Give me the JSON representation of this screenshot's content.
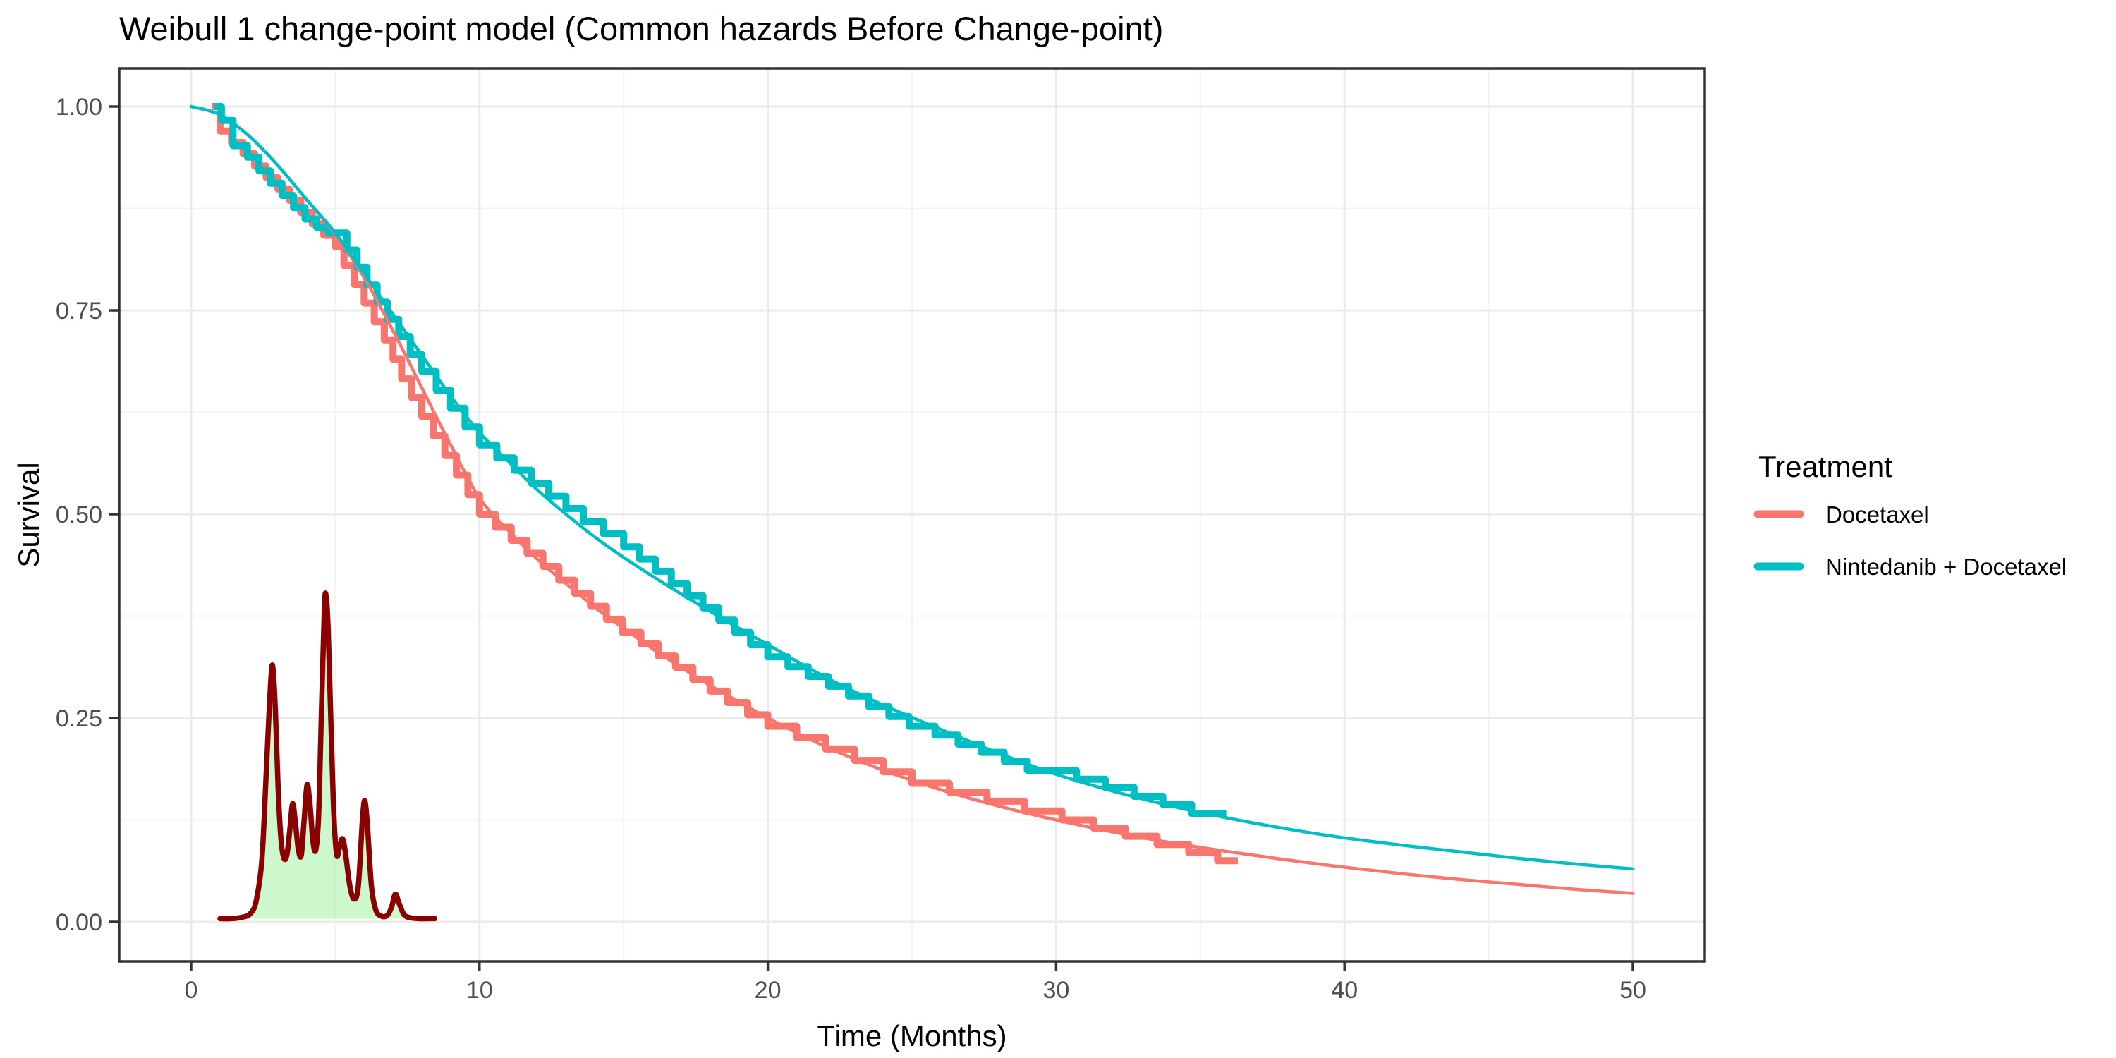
{
  "title": "Weibull 1 change-point model (Common hazards Before Change-point)",
  "chart_data": {
    "type": "line",
    "title": "Weibull 1 change-point model (Common hazards Before Change-point)",
    "xlabel": "Time (Months)",
    "ylabel": "Survival",
    "xlim": [
      0,
      50
    ],
    "ylim": [
      0,
      1
    ],
    "grid": "on",
    "legend_position": "right",
    "x_tick_values": [
      0,
      10,
      20,
      30,
      40,
      50
    ],
    "x_tick_labels": [
      "0",
      "10",
      "20",
      "30",
      "40",
      "50"
    ],
    "x_minor_ticks": [
      5,
      15,
      25,
      35,
      45
    ],
    "y_tick_values": [
      0,
      0.25,
      0.5,
      0.75,
      1
    ],
    "y_tick_labels": [
      "0.00",
      "0.25",
      "0.50",
      "0.75",
      "1.00"
    ],
    "y_minor_ticks": [
      0.125,
      0.375,
      0.625,
      0.875
    ],
    "colors": {
      "docetaxel": "#F8766D",
      "nintedanib_docetaxel": "#00BFC4",
      "density_stroke": "#8B0000",
      "density_fill": "#90EE90",
      "grid_major": "#EBEBEB",
      "grid_minor": "#F3F3F3",
      "panel_border": "#333333",
      "tick_mark": "#333333",
      "tick_text": "#4D4D4D"
    },
    "legend": {
      "title": "Treatment",
      "entries": [
        {
          "label": "Docetaxel",
          "color": "#F8766D"
        },
        {
          "label": "Nintedanib + Docetaxel",
          "color": "#00BFC4"
        }
      ]
    },
    "series": [
      {
        "name": "Docetaxel Kaplan-Meier (step)",
        "type": "step",
        "color": "#F8766D",
        "start_time": 0.72,
        "end_time": 36.3,
        "drops": [
          [
            1.0,
            0.97
          ],
          [
            1.4,
            0.956
          ],
          [
            1.8,
            0.942
          ],
          [
            2.2,
            0.927
          ],
          [
            2.6,
            0.913
          ],
          [
            3.0,
            0.899
          ],
          [
            3.4,
            0.885
          ],
          [
            3.8,
            0.87
          ],
          [
            4.2,
            0.856
          ],
          [
            4.6,
            0.842
          ],
          [
            5.0,
            0.828
          ],
          [
            5.3,
            0.805
          ],
          [
            5.65,
            0.782
          ],
          [
            6.0,
            0.759
          ],
          [
            6.35,
            0.736
          ],
          [
            6.7,
            0.713
          ],
          [
            7.0,
            0.69
          ],
          [
            7.3,
            0.666
          ],
          [
            7.65,
            0.643
          ],
          [
            8.0,
            0.62
          ],
          [
            8.4,
            0.596
          ],
          [
            8.8,
            0.572
          ],
          [
            9.2,
            0.548
          ],
          [
            9.6,
            0.524
          ],
          [
            10.0,
            0.5
          ],
          [
            10.55,
            0.484
          ],
          [
            11.1,
            0.468
          ],
          [
            11.65,
            0.452
          ],
          [
            12.2,
            0.436
          ],
          [
            12.75,
            0.419
          ],
          [
            13.3,
            0.403
          ],
          [
            13.85,
            0.387
          ],
          [
            14.4,
            0.371
          ],
          [
            14.95,
            0.355
          ],
          [
            15.6,
            0.341
          ],
          [
            16.2,
            0.326
          ],
          [
            16.8,
            0.312
          ],
          [
            17.4,
            0.297
          ],
          [
            18.0,
            0.283
          ],
          [
            18.6,
            0.269
          ],
          [
            19.3,
            0.254
          ],
          [
            20.0,
            0.24
          ],
          [
            21.0,
            0.226
          ],
          [
            22.0,
            0.212
          ],
          [
            23.0,
            0.198
          ],
          [
            24.0,
            0.184
          ],
          [
            25.0,
            0.17
          ],
          [
            26.3,
            0.159
          ],
          [
            27.6,
            0.148
          ],
          [
            28.9,
            0.136
          ],
          [
            30.2,
            0.125
          ],
          [
            31.3,
            0.115
          ],
          [
            32.4,
            0.105
          ],
          [
            33.5,
            0.095
          ],
          [
            34.6,
            0.085
          ],
          [
            35.6,
            0.075
          ]
        ]
      },
      {
        "name": "Nintedanib + Docetaxel Kaplan-Meier (step)",
        "type": "step",
        "color": "#00BFC4",
        "start_time": 0.8,
        "end_time": 35.9,
        "drops": [
          [
            1.05,
            0.983
          ],
          [
            1.45,
            0.952
          ],
          [
            1.95,
            0.938
          ],
          [
            2.35,
            0.921
          ],
          [
            2.75,
            0.906
          ],
          [
            3.15,
            0.891
          ],
          [
            3.55,
            0.876
          ],
          [
            3.95,
            0.862
          ],
          [
            4.35,
            0.852
          ],
          [
            4.75,
            0.845
          ],
          [
            5.4,
            0.824
          ],
          [
            5.75,
            0.803
          ],
          [
            6.1,
            0.781
          ],
          [
            6.45,
            0.76
          ],
          [
            6.8,
            0.739
          ],
          [
            7.2,
            0.718
          ],
          [
            7.6,
            0.696
          ],
          [
            8.0,
            0.675
          ],
          [
            8.5,
            0.652
          ],
          [
            9.0,
            0.63
          ],
          [
            9.5,
            0.607
          ],
          [
            10.0,
            0.585
          ],
          [
            10.6,
            0.569
          ],
          [
            11.2,
            0.554
          ],
          [
            11.8,
            0.538
          ],
          [
            12.4,
            0.522
          ],
          [
            13.0,
            0.507
          ],
          [
            13.6,
            0.491
          ],
          [
            14.3,
            0.476
          ],
          [
            15.0,
            0.46
          ],
          [
            15.55,
            0.445
          ],
          [
            16.1,
            0.43
          ],
          [
            16.65,
            0.415
          ],
          [
            17.2,
            0.4
          ],
          [
            17.75,
            0.385
          ],
          [
            18.3,
            0.37
          ],
          [
            18.85,
            0.355
          ],
          [
            19.4,
            0.34
          ],
          [
            20.0,
            0.325
          ],
          [
            20.7,
            0.313
          ],
          [
            21.4,
            0.301
          ],
          [
            22.1,
            0.289
          ],
          [
            22.8,
            0.277
          ],
          [
            23.5,
            0.264
          ],
          [
            24.2,
            0.252
          ],
          [
            24.9,
            0.24
          ],
          [
            25.8,
            0.229
          ],
          [
            26.6,
            0.218
          ],
          [
            27.4,
            0.208
          ],
          [
            28.2,
            0.197
          ],
          [
            29.0,
            0.186
          ],
          [
            30.7,
            0.175
          ],
          [
            31.7,
            0.165
          ],
          [
            32.7,
            0.154
          ],
          [
            33.7,
            0.144
          ],
          [
            34.7,
            0.133
          ]
        ]
      },
      {
        "name": "Docetaxel Weibull fit (smooth)",
        "type": "smooth",
        "color": "#F8766D",
        "points": [
          [
            0,
            1.0
          ],
          [
            1,
            0.99
          ],
          [
            2,
            0.964
          ],
          [
            3,
            0.928
          ],
          [
            4,
            0.886
          ],
          [
            5,
            0.843
          ],
          [
            6,
            0.79
          ],
          [
            7,
            0.725
          ],
          [
            8,
            0.655
          ],
          [
            9,
            0.585
          ],
          [
            10,
            0.52
          ],
          [
            11,
            0.48
          ],
          [
            12,
            0.445
          ],
          [
            13,
            0.415
          ],
          [
            14,
            0.386
          ],
          [
            15,
            0.36
          ],
          [
            16,
            0.335
          ],
          [
            17,
            0.312
          ],
          [
            18,
            0.29
          ],
          [
            19,
            0.27
          ],
          [
            20,
            0.25
          ],
          [
            22,
            0.215
          ],
          [
            24,
            0.186
          ],
          [
            26,
            0.162
          ],
          [
            28,
            0.142
          ],
          [
            30,
            0.125
          ],
          [
            32,
            0.11
          ],
          [
            34,
            0.097
          ],
          [
            36,
            0.086
          ],
          [
            38,
            0.076
          ],
          [
            40,
            0.067
          ],
          [
            42,
            0.059
          ],
          [
            44,
            0.052
          ],
          [
            46,
            0.046
          ],
          [
            48,
            0.04
          ],
          [
            50,
            0.035
          ]
        ]
      },
      {
        "name": "Nintedanib + Docetaxel Weibull fit (smooth)",
        "type": "smooth",
        "color": "#00BFC4",
        "points": [
          [
            0,
            1.0
          ],
          [
            1,
            0.99
          ],
          [
            2,
            0.964
          ],
          [
            3,
            0.928
          ],
          [
            4,
            0.886
          ],
          [
            5,
            0.845
          ],
          [
            6,
            0.795
          ],
          [
            7,
            0.745
          ],
          [
            8,
            0.695
          ],
          [
            9,
            0.645
          ],
          [
            10,
            0.6
          ],
          [
            11,
            0.565
          ],
          [
            12,
            0.53
          ],
          [
            13,
            0.5
          ],
          [
            14,
            0.472
          ],
          [
            15,
            0.447
          ],
          [
            16,
            0.424
          ],
          [
            17,
            0.402
          ],
          [
            18,
            0.381
          ],
          [
            19,
            0.36
          ],
          [
            20,
            0.34
          ],
          [
            22,
            0.3
          ],
          [
            24,
            0.266
          ],
          [
            26,
            0.236
          ],
          [
            28,
            0.207
          ],
          [
            30,
            0.181
          ],
          [
            32,
            0.16
          ],
          [
            34,
            0.142
          ],
          [
            36,
            0.127
          ],
          [
            38,
            0.114
          ],
          [
            40,
            0.103
          ],
          [
            42,
            0.094
          ],
          [
            44,
            0.086
          ],
          [
            46,
            0.078
          ],
          [
            48,
            0.071
          ],
          [
            50,
            0.065
          ]
        ]
      },
      {
        "name": "Change-point posterior density (inset)",
        "type": "density",
        "stroke": "#8B0000",
        "fill": "#90EE90",
        "fill_opacity": 0.45,
        "baseline": 0.004,
        "points": [
          [
            1.0,
            0.004
          ],
          [
            1.4,
            0.004
          ],
          [
            1.8,
            0.006
          ],
          [
            2.05,
            0.01
          ],
          [
            2.25,
            0.025
          ],
          [
            2.45,
            0.075
          ],
          [
            2.6,
            0.18
          ],
          [
            2.72,
            0.27
          ],
          [
            2.82,
            0.315
          ],
          [
            2.92,
            0.26
          ],
          [
            3.02,
            0.16
          ],
          [
            3.12,
            0.1
          ],
          [
            3.22,
            0.078
          ],
          [
            3.32,
            0.082
          ],
          [
            3.42,
            0.112
          ],
          [
            3.52,
            0.145
          ],
          [
            3.62,
            0.12
          ],
          [
            3.72,
            0.088
          ],
          [
            3.82,
            0.082
          ],
          [
            3.92,
            0.125
          ],
          [
            4.02,
            0.168
          ],
          [
            4.12,
            0.145
          ],
          [
            4.22,
            0.1
          ],
          [
            4.32,
            0.088
          ],
          [
            4.42,
            0.13
          ],
          [
            4.52,
            0.26
          ],
          [
            4.62,
            0.385
          ],
          [
            4.68,
            0.4
          ],
          [
            4.75,
            0.36
          ],
          [
            4.85,
            0.24
          ],
          [
            4.95,
            0.13
          ],
          [
            5.05,
            0.082
          ],
          [
            5.15,
            0.092
          ],
          [
            5.25,
            0.102
          ],
          [
            5.35,
            0.085
          ],
          [
            5.5,
            0.045
          ],
          [
            5.65,
            0.028
          ],
          [
            5.8,
            0.045
          ],
          [
            5.95,
            0.13
          ],
          [
            6.03,
            0.148
          ],
          [
            6.12,
            0.115
          ],
          [
            6.25,
            0.045
          ],
          [
            6.4,
            0.015
          ],
          [
            6.6,
            0.007
          ],
          [
            6.8,
            0.008
          ],
          [
            6.95,
            0.018
          ],
          [
            7.08,
            0.034
          ],
          [
            7.2,
            0.024
          ],
          [
            7.38,
            0.009
          ],
          [
            7.6,
            0.005
          ],
          [
            7.9,
            0.004
          ],
          [
            8.2,
            0.004
          ],
          [
            8.45,
            0.004
          ]
        ]
      }
    ]
  }
}
